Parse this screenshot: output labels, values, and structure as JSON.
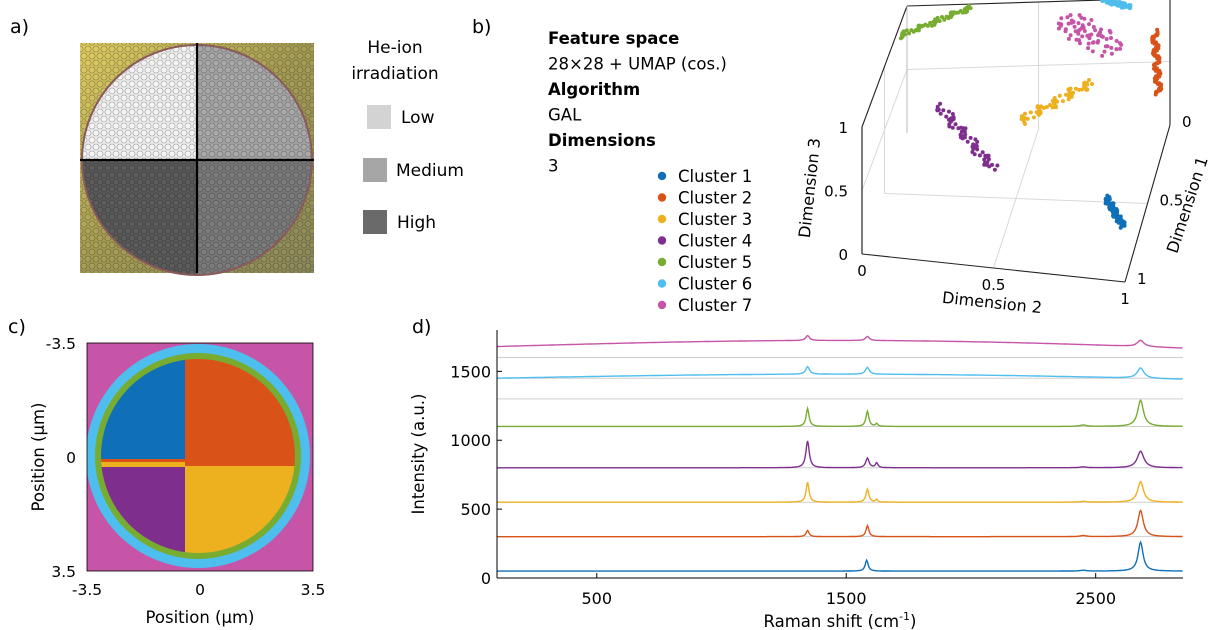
{
  "panels": {
    "a": {
      "label": "a)",
      "legend_title": [
        "He-ion",
        "irradiation"
      ],
      "levels": [
        {
          "name": "Low",
          "color": "#d3d3d3"
        },
        {
          "name": "Medium",
          "color": "#a6a6a6"
        },
        {
          "name": "High",
          "color": "#6a6a6a"
        }
      ]
    },
    "b": {
      "label": "b)",
      "info": [
        {
          "text": "Feature space",
          "bold": true
        },
        {
          "text": "28×28 + UMAP (cos.)",
          "bold": false
        },
        {
          "text": "Algorithm",
          "bold": true
        },
        {
          "text": "GAL",
          "bold": false
        },
        {
          "text": "Dimensions",
          "bold": true
        },
        {
          "text": "3",
          "bold": false
        }
      ],
      "legend": [
        {
          "name": "Cluster 1",
          "color": "#0f6fb8"
        },
        {
          "name": "Cluster 2",
          "color": "#d95319"
        },
        {
          "name": "Cluster 3",
          "color": "#edb120"
        },
        {
          "name": "Cluster 4",
          "color": "#7e2f8e"
        },
        {
          "name": "Cluster 5",
          "color": "#77ac30"
        },
        {
          "name": "Cluster 6",
          "color": "#4dbeee"
        },
        {
          "name": "Cluster 7",
          "color": "#c654a7"
        }
      ]
    },
    "c": {
      "label": "c)"
    },
    "d": {
      "label": "d)"
    }
  },
  "chart_data": [
    {
      "type": "scatter",
      "subtype": "3d-scatter",
      "panel": "b",
      "xlabel": "Dimension 1",
      "ylabel": "Dimension 2",
      "zlabel": "Dimension 3",
      "xticks": [
        "0",
        "0.5",
        "1"
      ],
      "yticks": [
        "0",
        "0.5",
        "1"
      ],
      "zticks": [
        "0",
        "0.5",
        "1"
      ],
      "xlim": [
        0,
        1
      ],
      "ylim": [
        0,
        1
      ],
      "zlim": [
        0,
        1
      ],
      "grid": true,
      "series": [
        {
          "name": "Cluster 1",
          "points": [
            [
              0.55,
              0.85,
              0.1
            ],
            [
              0.75,
              0.95,
              0.12
            ]
          ]
        },
        {
          "name": "Cluster 2",
          "points": [
            [
              0.05,
              0.95,
              0.8
            ],
            [
              0.25,
              1.0,
              0.55
            ]
          ]
        },
        {
          "name": "Cluster 3",
          "points": [
            [
              0.4,
              0.5,
              0.5
            ],
            [
              0.25,
              0.75,
              0.65
            ]
          ]
        },
        {
          "name": "Cluster 4",
          "points": [
            [
              0.45,
              0.2,
              0.65
            ],
            [
              0.7,
              0.45,
              0.45
            ]
          ]
        },
        {
          "name": "Cluster 5",
          "points": [
            [
              0.0,
              0.25,
              0.98
            ],
            [
              0.2,
              0.0,
              0.95
            ]
          ]
        },
        {
          "name": "Cluster 6",
          "points": [
            [
              0.0,
              0.75,
              1.0
            ],
            [
              0.05,
              0.85,
              1.0
            ]
          ]
        },
        {
          "name": "Cluster 7",
          "points": [
            [
              0.0,
              0.6,
              0.85
            ],
            [
              0.15,
              0.8,
              0.8
            ]
          ]
        }
      ]
    },
    {
      "type": "heatmap",
      "panel": "c",
      "xlabel": "Position (μm)",
      "ylabel": "Position (μm)",
      "xticks": [
        "-3.5",
        "0",
        "3.5"
      ],
      "yticks": [
        "-3.5",
        "0",
        "3.5"
      ],
      "xlim": [
        -3.5,
        3.5
      ],
      "ylim": [
        -3.5,
        3.5
      ],
      "regions": [
        {
          "cluster": "Cluster 7",
          "region": "background outside disk"
        },
        {
          "cluster": "Cluster 6",
          "region": "outer ring"
        },
        {
          "cluster": "Cluster 5",
          "region": "inner ring"
        },
        {
          "cluster": "Cluster 1",
          "region": "top-left quadrant"
        },
        {
          "cluster": "Cluster 2",
          "region": "top-right quadrant"
        },
        {
          "cluster": "Cluster 4",
          "region": "bottom-left quadrant"
        },
        {
          "cluster": "Cluster 3",
          "region": "bottom-right quadrant"
        }
      ]
    },
    {
      "type": "line",
      "panel": "d",
      "xlabel": "Raman shift (cm",
      "xlabel_sup": "-1",
      "xlabel_end": ")",
      "ylabel": "Intensity (a.u.)",
      "xticks": [
        "500",
        "1500",
        "2500"
      ],
      "yticks": [
        "0",
        "500",
        "1000",
        "1500"
      ],
      "xlim": [
        100,
        2850
      ],
      "ylim": [
        0,
        1800
      ],
      "gridlines_y": [
        300,
        550,
        800,
        1100,
        1300,
        1450,
        1600
      ],
      "series": [
        {
          "name": "Cluster 1",
          "baseline": 50,
          "peaks": [
            [
              1582,
              80,
              7
            ],
            [
              2680,
              210,
              12
            ],
            [
              2450,
              6,
              15
            ]
          ]
        },
        {
          "name": "Cluster 2",
          "baseline": 300,
          "peaks": [
            [
              1345,
              45,
              7
            ],
            [
              1585,
              80,
              7
            ],
            [
              2680,
              190,
              13
            ],
            [
              2450,
              8,
              15
            ]
          ]
        },
        {
          "name": "Cluster 3",
          "baseline": 550,
          "peaks": [
            [
              1345,
              145,
              7
            ],
            [
              1585,
              95,
              7
            ],
            [
              1622,
              20,
              5
            ],
            [
              2680,
              150,
              14
            ],
            [
              2450,
              6,
              15
            ]
          ]
        },
        {
          "name": "Cluster 4",
          "baseline": 800,
          "peaks": [
            [
              1345,
              195,
              8
            ],
            [
              1585,
              70,
              8
            ],
            [
              1622,
              35,
              6
            ],
            [
              2680,
              120,
              16
            ],
            [
              2450,
              6,
              15
            ]
          ]
        },
        {
          "name": "Cluster 5",
          "baseline": 1100,
          "peaks": [
            [
              1345,
              130,
              7
            ],
            [
              1585,
              110,
              7
            ],
            [
              1622,
              20,
              5
            ],
            [
              2680,
              190,
              14
            ],
            [
              2450,
              10,
              15
            ]
          ]
        },
        {
          "name": "Cluster 6",
          "baseline": 1450,
          "tilt": 40,
          "peaks": [
            [
              1345,
              55,
              9
            ],
            [
              1585,
              50,
              9
            ],
            [
              2680,
              75,
              16
            ]
          ]
        },
        {
          "name": "Cluster 7",
          "baseline": 1680,
          "tilt": 60,
          "peaks": [
            [
              1345,
              35,
              9
            ],
            [
              1585,
              30,
              9
            ],
            [
              2680,
              45,
              16
            ]
          ]
        }
      ]
    }
  ]
}
